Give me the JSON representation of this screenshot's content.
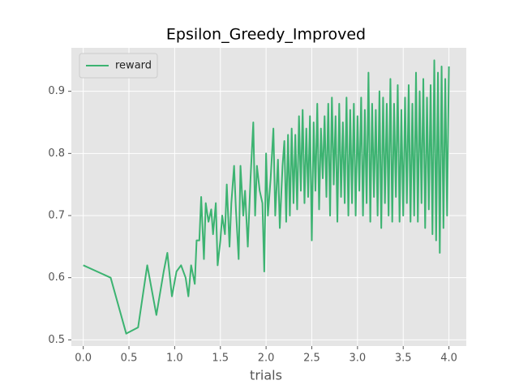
{
  "chart_data": {
    "type": "line",
    "title": "Epsilon_Greedy_Improved",
    "x_label": "trials",
    "x": [
      0,
      0.3,
      0.47,
      0.6,
      0.7,
      0.8,
      0.88,
      0.92,
      0.97,
      1.02,
      1.07,
      1.12,
      1.15,
      1.18,
      1.22,
      1.24,
      1.27,
      1.29,
      1.32,
      1.34,
      1.37,
      1.4,
      1.42,
      1.45,
      1.47,
      1.5,
      1.52,
      1.55,
      1.57,
      1.6,
      1.62,
      1.65,
      1.67,
      1.7,
      1.72,
      1.75,
      1.77,
      1.8,
      1.83,
      1.86,
      1.88,
      1.9,
      1.93,
      1.96,
      1.98,
      2.0,
      2.02,
      2.05,
      2.08,
      2.1,
      2.13,
      2.15,
      2.18,
      2.2,
      2.22,
      2.24,
      2.26,
      2.28,
      2.3,
      2.32,
      2.34,
      2.36,
      2.38,
      2.4,
      2.42,
      2.44,
      2.46,
      2.48,
      2.5,
      2.52,
      2.54,
      2.56,
      2.58,
      2.6,
      2.62,
      2.64,
      2.66,
      2.68,
      2.7,
      2.72,
      2.74,
      2.76,
      2.78,
      2.8,
      2.82,
      2.84,
      2.86,
      2.88,
      2.9,
      2.92,
      2.94,
      2.96,
      2.98,
      3.0,
      3.02,
      3.04,
      3.06,
      3.08,
      3.1,
      3.12,
      3.14,
      3.16,
      3.18,
      3.2,
      3.22,
      3.24,
      3.26,
      3.28,
      3.3,
      3.32,
      3.34,
      3.36,
      3.38,
      3.4,
      3.42,
      3.44,
      3.46,
      3.48,
      3.5,
      3.52,
      3.54,
      3.56,
      3.58,
      3.6,
      3.62,
      3.64,
      3.66,
      3.68,
      3.7,
      3.72,
      3.74,
      3.76,
      3.78,
      3.8,
      3.82,
      3.84,
      3.86,
      3.88,
      3.9,
      3.92,
      3.94,
      3.96,
      3.98,
      4.0
    ],
    "series": [
      {
        "name": "reward",
        "color": "#3cb371",
        "values": [
          0.62,
          0.6,
          0.51,
          0.52,
          0.62,
          0.54,
          0.61,
          0.64,
          0.57,
          0.61,
          0.62,
          0.6,
          0.57,
          0.62,
          0.59,
          0.66,
          0.66,
          0.73,
          0.63,
          0.72,
          0.69,
          0.71,
          0.67,
          0.72,
          0.62,
          0.66,
          0.7,
          0.67,
          0.75,
          0.65,
          0.72,
          0.78,
          0.71,
          0.63,
          0.78,
          0.7,
          0.74,
          0.65,
          0.76,
          0.85,
          0.7,
          0.78,
          0.74,
          0.72,
          0.61,
          0.8,
          0.7,
          0.76,
          0.84,
          0.7,
          0.79,
          0.68,
          0.78,
          0.82,
          0.69,
          0.83,
          0.7,
          0.84,
          0.72,
          0.83,
          0.71,
          0.86,
          0.74,
          0.87,
          0.72,
          0.84,
          0.73,
          0.86,
          0.66,
          0.85,
          0.74,
          0.88,
          0.71,
          0.84,
          0.76,
          0.86,
          0.73,
          0.88,
          0.7,
          0.89,
          0.75,
          0.86,
          0.69,
          0.88,
          0.73,
          0.85,
          0.72,
          0.89,
          0.7,
          0.87,
          0.72,
          0.88,
          0.7,
          0.86,
          0.74,
          0.89,
          0.7,
          0.87,
          0.72,
          0.93,
          0.69,
          0.88,
          0.73,
          0.87,
          0.7,
          0.9,
          0.68,
          0.89,
          0.72,
          0.88,
          0.7,
          0.92,
          0.69,
          0.88,
          0.73,
          0.91,
          0.69,
          0.87,
          0.7,
          0.89,
          0.72,
          0.91,
          0.69,
          0.88,
          0.7,
          0.93,
          0.69,
          0.9,
          0.72,
          0.92,
          0.68,
          0.89,
          0.71,
          0.91,
          0.67,
          0.95,
          0.66,
          0.93,
          0.64,
          0.94,
          0.68,
          0.92,
          0.7,
          0.94
        ]
      }
    ],
    "xlim": [
      -0.13,
      4.19
    ],
    "ylim": [
      0.49,
      0.97
    ],
    "xticks": [
      {
        "value": 0,
        "label": "0.0"
      },
      0.5,
      {
        "value": 1,
        "label": "1.0"
      },
      1.5,
      {
        "value": 2,
        "label": "2.0"
      },
      2.5,
      {
        "value": 3,
        "label": "3.0"
      },
      3.5,
      {
        "value": 4,
        "label": "4.0"
      }
    ],
    "yticks": [
      0.5,
      0.6,
      0.7,
      0.8,
      0.9
    ],
    "grid": true,
    "legend": "upper left"
  }
}
